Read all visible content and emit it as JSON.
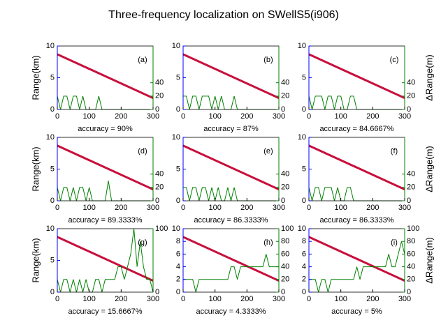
{
  "title": "Three-frequency localization on SWellS5(i906)",
  "chart_data": [
    {
      "type": "line",
      "label": "(a)",
      "xlabel": "accuracy = 90%",
      "ylabel": "Range(km)",
      "xlim": [
        0,
        300
      ],
      "xticks": [
        0,
        100,
        200,
        300
      ],
      "ylim": [
        0,
        10
      ],
      "yticks": [
        0,
        5,
        10
      ],
      "y2lim": [
        0,
        95
      ],
      "y2ticks": [
        0,
        20,
        40
      ],
      "series": [
        {
          "color": "#c8103c",
          "x": [
            0,
            300
          ],
          "values": [
            8.7,
            1.8
          ]
        },
        {
          "color": "#008000",
          "axis": "y2",
          "x": [
            0,
            10,
            20,
            30,
            40,
            50,
            60,
            70,
            80,
            90,
            100,
            110,
            120,
            130,
            140,
            150,
            160,
            170,
            180,
            190,
            200,
            210,
            220,
            230,
            240,
            250,
            260,
            270,
            280,
            290,
            300
          ],
          "values": [
            20,
            0,
            20,
            20,
            0,
            20,
            20,
            0,
            20,
            0,
            0,
            0,
            0,
            20,
            0,
            0,
            0,
            0,
            0,
            0,
            0,
            0,
            0,
            0,
            0,
            0,
            0,
            0,
            0,
            0,
            0
          ]
        }
      ]
    },
    {
      "type": "line",
      "label": "(b)",
      "xlabel": "accuracy = 87%",
      "xlim": [
        0,
        300
      ],
      "xticks": [
        0,
        100,
        200,
        300
      ],
      "ylim": [
        0,
        10
      ],
      "yticks": [
        0,
        5,
        10
      ],
      "y2lim": [
        0,
        95
      ],
      "y2ticks": [
        0,
        20,
        40
      ],
      "series": [
        {
          "color": "#c8103c",
          "x": [
            0,
            300
          ],
          "values": [
            8.7,
            1.8
          ]
        },
        {
          "color": "#008000",
          "axis": "y2",
          "x": [
            0,
            10,
            20,
            30,
            40,
            50,
            60,
            70,
            80,
            90,
            100,
            110,
            120,
            130,
            140,
            150,
            160,
            170,
            180,
            190,
            200,
            210,
            220,
            230,
            240,
            250,
            260,
            270,
            280,
            290,
            300
          ],
          "values": [
            20,
            20,
            0,
            20,
            20,
            0,
            20,
            20,
            20,
            0,
            20,
            0,
            20,
            0,
            0,
            0,
            20,
            0,
            0,
            0,
            0,
            0,
            0,
            0,
            0,
            0,
            0,
            0,
            0,
            0,
            0
          ]
        }
      ]
    },
    {
      "type": "line",
      "label": "(c)",
      "xlabel": "accuracy = 84.6667%",
      "y2label": "ΔRange(m)",
      "xlim": [
        0,
        300
      ],
      "xticks": [
        0,
        100,
        200,
        300
      ],
      "ylim": [
        0,
        10
      ],
      "yticks": [
        0,
        5,
        10
      ],
      "y2lim": [
        0,
        95
      ],
      "y2ticks": [
        0,
        20,
        40
      ],
      "series": [
        {
          "color": "#c8103c",
          "x": [
            0,
            300
          ],
          "values": [
            8.7,
            1.8
          ]
        },
        {
          "color": "#008000",
          "axis": "y2",
          "x": [
            0,
            10,
            20,
            30,
            40,
            50,
            60,
            70,
            80,
            90,
            100,
            110,
            120,
            130,
            140,
            150,
            160,
            170,
            180,
            190,
            200,
            210,
            220,
            230,
            240,
            250,
            260,
            270,
            280,
            290,
            300
          ],
          "values": [
            20,
            0,
            20,
            20,
            20,
            0,
            20,
            20,
            0,
            20,
            20,
            0,
            0,
            20,
            20,
            0,
            0,
            0,
            0,
            0,
            0,
            0,
            0,
            0,
            0,
            0,
            0,
            0,
            0,
            0,
            0
          ]
        }
      ]
    },
    {
      "type": "line",
      "label": "(d)",
      "xlabel": "accuracy = 89.3333%",
      "ylabel": "Range(km)",
      "xlim": [
        0,
        300
      ],
      "xticks": [
        0,
        100,
        200,
        300
      ],
      "ylim": [
        0,
        10
      ],
      "yticks": [
        0,
        5,
        10
      ],
      "y2lim": [
        0,
        95
      ],
      "y2ticks": [
        0,
        20,
        40
      ],
      "series": [
        {
          "color": "#c8103c",
          "x": [
            0,
            300
          ],
          "values": [
            8.7,
            1.8
          ]
        },
        {
          "color": "#008000",
          "axis": "y2",
          "x": [
            0,
            10,
            20,
            30,
            40,
            50,
            60,
            70,
            80,
            90,
            100,
            110,
            120,
            130,
            140,
            150,
            160,
            170,
            180,
            190,
            200,
            210,
            220,
            230,
            240,
            250,
            260,
            270,
            280,
            290,
            300
          ],
          "values": [
            20,
            0,
            20,
            20,
            0,
            20,
            0,
            20,
            20,
            0,
            20,
            0,
            0,
            0,
            0,
            0,
            30,
            0,
            0,
            0,
            0,
            0,
            0,
            0,
            0,
            0,
            0,
            0,
            0,
            0,
            0
          ]
        }
      ]
    },
    {
      "type": "line",
      "label": "(e)",
      "xlabel": "accuracy = 86.3333%",
      "xlim": [
        0,
        300
      ],
      "xticks": [
        0,
        100,
        200,
        300
      ],
      "ylim": [
        0,
        10
      ],
      "yticks": [
        0,
        5,
        10
      ],
      "y2lim": [
        0,
        95
      ],
      "y2ticks": [
        0,
        20,
        40
      ],
      "series": [
        {
          "color": "#c8103c",
          "x": [
            0,
            300
          ],
          "values": [
            8.7,
            1.8
          ]
        },
        {
          "color": "#008000",
          "axis": "y2",
          "x": [
            0,
            10,
            20,
            30,
            40,
            50,
            60,
            70,
            80,
            90,
            100,
            110,
            120,
            130,
            140,
            150,
            160,
            170,
            180,
            190,
            200,
            210,
            220,
            230,
            240,
            250,
            260,
            270,
            280,
            290,
            300
          ],
          "values": [
            20,
            20,
            0,
            20,
            20,
            0,
            20,
            20,
            0,
            20,
            0,
            20,
            0,
            0,
            20,
            0,
            20,
            0,
            0,
            0,
            0,
            0,
            0,
            0,
            0,
            0,
            0,
            0,
            0,
            0,
            0
          ]
        }
      ]
    },
    {
      "type": "line",
      "label": "(f)",
      "xlabel": "accuracy = 86.3333%",
      "y2label": "ΔRange(m)",
      "xlim": [
        0,
        300
      ],
      "xticks": [
        0,
        100,
        200,
        300
      ],
      "ylim": [
        0,
        10
      ],
      "yticks": [
        0,
        5,
        10
      ],
      "y2lim": [
        0,
        95
      ],
      "y2ticks": [
        0,
        20,
        40
      ],
      "series": [
        {
          "color": "#c8103c",
          "x": [
            0,
            300
          ],
          "values": [
            8.7,
            1.8
          ]
        },
        {
          "color": "#008000",
          "axis": "y2",
          "x": [
            0,
            10,
            20,
            30,
            40,
            50,
            60,
            70,
            80,
            90,
            100,
            110,
            120,
            130,
            140,
            150,
            160,
            170,
            180,
            190,
            200,
            210,
            220,
            230,
            240,
            250,
            260,
            270,
            280,
            290,
            300
          ],
          "values": [
            20,
            0,
            20,
            20,
            0,
            20,
            20,
            20,
            0,
            20,
            0,
            0,
            20,
            20,
            0,
            0,
            0,
            0,
            0,
            0,
            0,
            0,
            0,
            0,
            0,
            0,
            0,
            0,
            0,
            0,
            0
          ]
        }
      ]
    },
    {
      "type": "line",
      "label": "(g)",
      "xlabel": "accuracy = 15.6667%",
      "ylabel": "Range(km)",
      "xlim": [
        0,
        300
      ],
      "xticks": [
        0,
        100,
        200,
        300
      ],
      "ylim": [
        0,
        10
      ],
      "yticks": [
        0,
        5,
        10
      ],
      "y2lim": [
        0,
        100
      ],
      "y2ticks": [
        0,
        100
      ],
      "series": [
        {
          "color": "#c8103c",
          "x": [
            0,
            300
          ],
          "values": [
            8.7,
            1.8
          ]
        },
        {
          "color": "#008000",
          "axis": "y2",
          "x": [
            0,
            10,
            20,
            30,
            40,
            50,
            60,
            70,
            80,
            90,
            100,
            110,
            120,
            130,
            140,
            150,
            160,
            170,
            180,
            190,
            200,
            210,
            220,
            230,
            240,
            250,
            260,
            270,
            280,
            290,
            300
          ],
          "values": [
            20,
            0,
            20,
            20,
            0,
            20,
            0,
            20,
            0,
            20,
            0,
            0,
            20,
            20,
            0,
            20,
            20,
            20,
            20,
            40,
            40,
            20,
            40,
            60,
            100,
            40,
            80,
            40,
            20,
            20,
            0
          ]
        }
      ]
    },
    {
      "type": "line",
      "label": "(h)",
      "xlabel": "accuracy = 4.3333%",
      "xlim": [
        0,
        300
      ],
      "xticks": [
        0,
        100,
        200,
        300
      ],
      "ylim": [
        0,
        10
      ],
      "yticks": [
        0,
        2,
        4,
        6,
        8,
        10
      ],
      "y2lim": [
        0,
        100
      ],
      "y2ticks": [
        0,
        20,
        40,
        60,
        80,
        100
      ],
      "series": [
        {
          "color": "#c8103c",
          "x": [
            0,
            300
          ],
          "values": [
            8.7,
            1.8
          ]
        },
        {
          "color": "#008000",
          "axis": "y2",
          "x": [
            0,
            10,
            20,
            30,
            40,
            50,
            60,
            70,
            80,
            90,
            100,
            110,
            120,
            130,
            140,
            150,
            160,
            170,
            180,
            190,
            200,
            210,
            220,
            230,
            240,
            250,
            260,
            270,
            280,
            290,
            300
          ],
          "values": [
            20,
            20,
            20,
            20,
            0,
            20,
            20,
            20,
            20,
            20,
            20,
            20,
            20,
            20,
            20,
            40,
            40,
            20,
            40,
            40,
            40,
            40,
            40,
            40,
            40,
            40,
            60,
            40,
            40,
            40,
            40
          ]
        }
      ]
    },
    {
      "type": "line",
      "label": "(i)",
      "xlabel": "accuracy = 5%",
      "y2label": "ΔRange(m)",
      "xlim": [
        0,
        300
      ],
      "xticks": [
        0,
        100,
        200,
        300
      ],
      "ylim": [
        0,
        10
      ],
      "yticks": [
        0,
        2,
        4,
        6,
        8,
        10
      ],
      "y2lim": [
        0,
        100
      ],
      "y2ticks": [
        0,
        20,
        40,
        60,
        80,
        100
      ],
      "series": [
        {
          "color": "#c8103c",
          "x": [
            0,
            300
          ],
          "values": [
            8.7,
            1.8
          ]
        },
        {
          "color": "#008000",
          "axis": "y2",
          "x": [
            0,
            10,
            20,
            30,
            40,
            50,
            60,
            70,
            80,
            90,
            100,
            110,
            120,
            130,
            140,
            150,
            160,
            170,
            180,
            190,
            200,
            210,
            220,
            230,
            240,
            250,
            260,
            270,
            280,
            290,
            300
          ],
          "values": [
            20,
            20,
            20,
            0,
            20,
            20,
            0,
            20,
            20,
            20,
            20,
            20,
            20,
            20,
            20,
            40,
            20,
            40,
            40,
            40,
            40,
            40,
            40,
            40,
            40,
            60,
            40,
            40,
            60,
            80,
            60
          ]
        }
      ]
    }
  ]
}
